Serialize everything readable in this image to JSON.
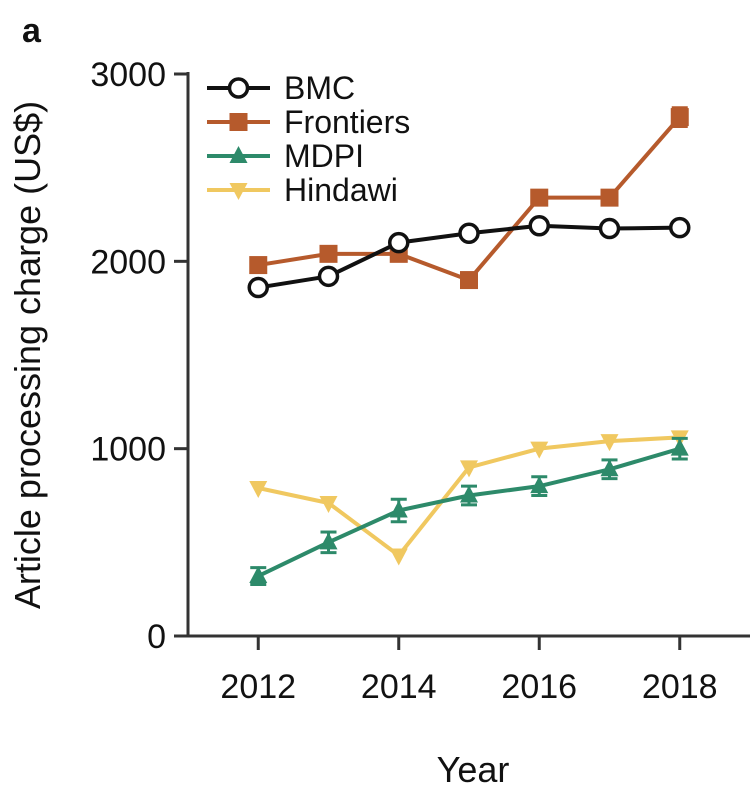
{
  "panel_label": "a",
  "chart_data": {
    "type": "line",
    "title": "",
    "xlabel": "Year",
    "ylabel": "Article processing charge (US$)",
    "xlim": [
      2011,
      2019
    ],
    "ylim": [
      0,
      3000
    ],
    "xticks": [
      2012,
      2014,
      2016,
      2018
    ],
    "yticks": [
      0,
      1000,
      2000,
      3000
    ],
    "grid": false,
    "legend_position": "top-left",
    "series": [
      {
        "name": "BMC",
        "color": "#111111",
        "marker": "circle-open",
        "x": [
          2012,
          2013,
          2014,
          2015,
          2016,
          2017,
          2018
        ],
        "y": [
          1860,
          1920,
          2100,
          2150,
          2190,
          2175,
          2180
        ]
      },
      {
        "name": "Frontiers",
        "color": "#b65a2c",
        "marker": "square",
        "x": [
          2012,
          2013,
          2014,
          2015,
          2016,
          2017,
          2018
        ],
        "y": [
          1980,
          2040,
          2040,
          1900,
          2340,
          2340,
          2770
        ],
        "error": [
          25,
          25,
          25,
          25,
          30,
          30,
          50
        ]
      },
      {
        "name": "MDPI",
        "color": "#2d8a6a",
        "marker": "triangle-up",
        "x": [
          2012,
          2013,
          2014,
          2015,
          2016,
          2017,
          2018
        ],
        "y": [
          320,
          500,
          670,
          750,
          800,
          890,
          1000
        ],
        "error": [
          45,
          55,
          60,
          50,
          50,
          50,
          55
        ]
      },
      {
        "name": "Hindawi",
        "color": "#f0c860",
        "marker": "triangle-down",
        "x": [
          2012,
          2013,
          2014,
          2015,
          2016,
          2017,
          2018
        ],
        "y": [
          790,
          710,
          430,
          900,
          1000,
          1040,
          1060
        ]
      }
    ]
  }
}
